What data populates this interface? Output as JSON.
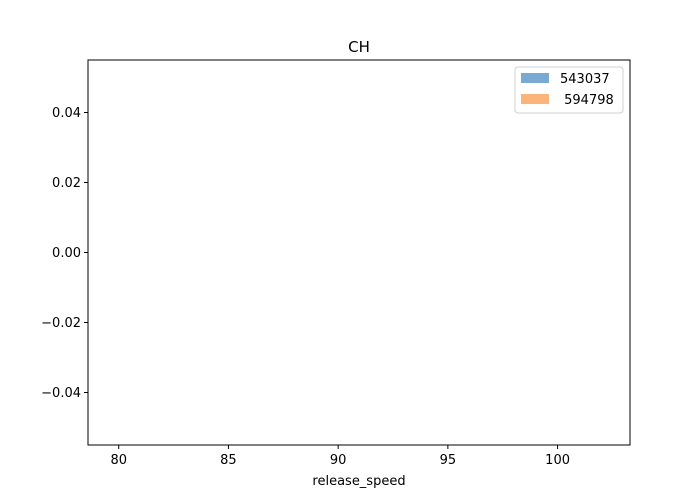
{
  "chart_data": {
    "type": "bar",
    "title": "CH",
    "xlabel": "release_speed",
    "ylabel": "",
    "xlim": [
      78.6,
      103.3
    ],
    "ylim": [
      -0.055,
      0.055
    ],
    "x_ticks": [
      80,
      85,
      90,
      95,
      100
    ],
    "y_ticks": [
      -0.04,
      -0.02,
      0.0,
      0.02,
      0.04
    ],
    "x_tick_labels": [
      "80",
      "85",
      "90",
      "95",
      "100"
    ],
    "y_tick_labels": [
      "−0.04",
      "−0.02",
      "0.00",
      "0.02",
      "0.04"
    ],
    "grid": false,
    "legend_position": "top-right",
    "series": [
      {
        "name": "543037",
        "values": [],
        "color": "#7aaad3"
      },
      {
        "name": " 594798",
        "values": [],
        "color": "#fdb47a"
      }
    ]
  }
}
